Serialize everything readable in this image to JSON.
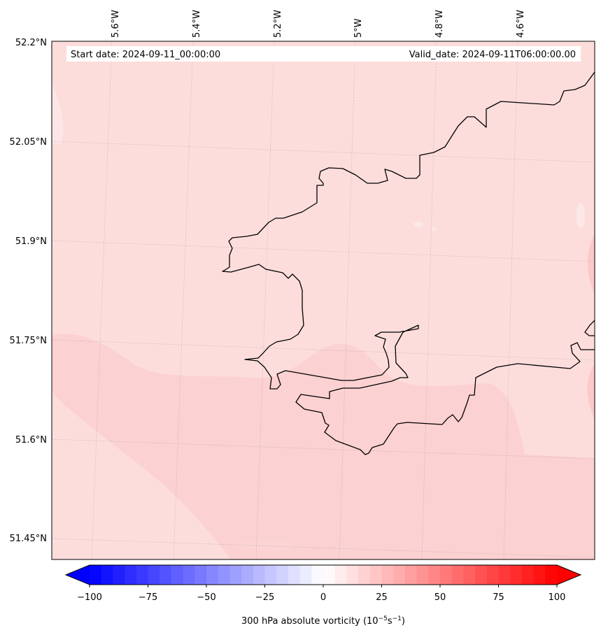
{
  "map": {
    "start_date": "Start date: 2024-09-11_00:00:00",
    "valid_date": "Valid_date: 2024-09-11T06:00:00.00",
    "lon_labels": [
      "5.6°W",
      "5.4°W",
      "5.2°W",
      "5°W",
      "4.8°W",
      "4.6°W"
    ],
    "lat_labels": [
      "52.2°N",
      "52.05°N",
      "51.9°N",
      "51.75°N",
      "51.6°N",
      "51.45°N"
    ],
    "field_colors": {
      "base": "#fdddDC",
      "band": "#fcd1d1",
      "faint": "#fde8e8"
    },
    "coastline_color": "#000000"
  },
  "colorbar": {
    "label_prefix": "300 hPa absolute vorticity (10",
    "label_exp1": "−5",
    "label_mid": "s",
    "label_exp2": "−1",
    "label_suffix": ")",
    "tick_values": [
      -100,
      -75,
      -50,
      -25,
      0,
      25,
      50,
      75,
      100
    ],
    "tick_labels": [
      "−100",
      "−75",
      "−50",
      "−25",
      "0",
      "25",
      "50",
      "75",
      "100"
    ],
    "vmin": -100,
    "vmax": 100,
    "levels": 40,
    "cmap": "bwr"
  }
}
